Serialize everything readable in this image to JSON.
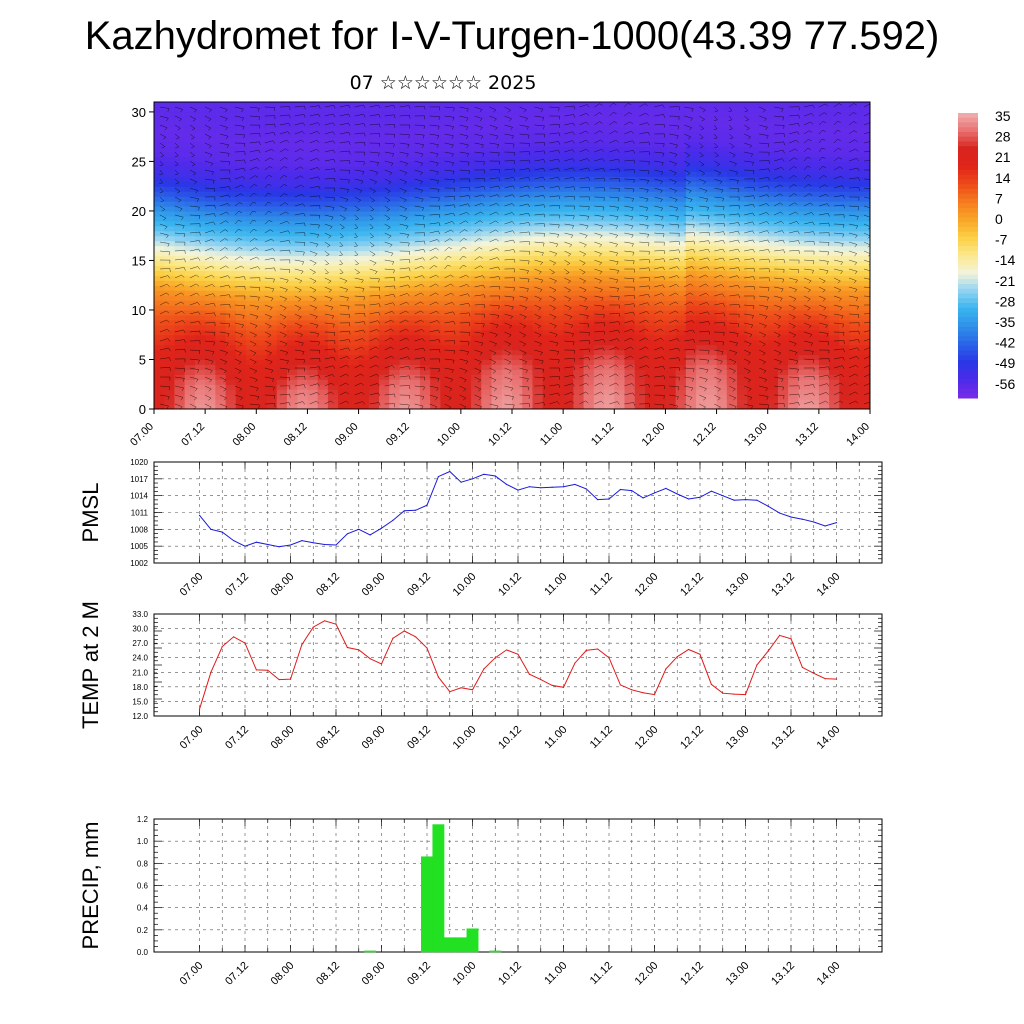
{
  "title": "Kazhydromet for I-V-Turgen-1000(43.39 77.592)",
  "subtitle": "07 ☆☆☆☆☆☆ 2025",
  "x_ticks": [
    "07.00",
    "07.12",
    "08.00",
    "08.12",
    "09.00",
    "09.12",
    "10.00",
    "10.12",
    "11.00",
    "11.12",
    "12.00",
    "12.12",
    "13.00",
    "13.12",
    "14.00"
  ],
  "colors": {
    "pmsl_line": "#1a1adc",
    "temp_line": "#e01a1a",
    "precip_bar": "#22e022",
    "colorbar": [
      "#7a2bea",
      "#4d2bea",
      "#2a37e6",
      "#2b63e8",
      "#2f8fe8",
      "#39b4ef",
      "#8fd2f2",
      "#f3f4dc",
      "#fbe98c",
      "#fbd045",
      "#f9a628",
      "#f57b1f",
      "#ee4a1a",
      "#e0241a",
      "#d8241e",
      "#e87171",
      "#f2b0b0"
    ]
  },
  "chart_data": [
    {
      "type": "heatmap",
      "title": "",
      "x_ticks": [
        "07.00",
        "07.12",
        "08.00",
        "08.12",
        "09.00",
        "09.12",
        "10.00",
        "10.12",
        "11.00",
        "11.12",
        "12.00",
        "12.12",
        "13.00",
        "13.12",
        "14.00"
      ],
      "y_ticks": [
        "0",
        "5",
        "10",
        "15",
        "20",
        "25",
        "30"
      ],
      "ylim": [
        0,
        31
      ],
      "colorbar_labels": [
        "35",
        "28",
        "21",
        "14",
        "7",
        "0",
        "-7",
        "-14",
        "-21",
        "-28",
        "-35",
        "-42",
        "-49",
        "-56"
      ],
      "value_range": [
        -60,
        38
      ],
      "overlay": "wind barbs",
      "profile": {
        "levels": [
          0,
          3,
          6,
          9,
          12,
          14,
          16,
          18,
          20,
          22,
          24,
          26,
          28,
          31
        ],
        "values": [
          30,
          28,
          22,
          14,
          4,
          -6,
          -16,
          -26,
          -34,
          -44,
          -52,
          -56,
          -57,
          -56
        ]
      }
    },
    {
      "type": "line",
      "ylabel": "PMSL",
      "ylim": [
        1002,
        1020
      ],
      "y_ticks": [
        "1020",
        "1017",
        "1014",
        "1011",
        "1008",
        "1005",
        "1002"
      ],
      "x_ticks": [
        "07.00",
        "07.12",
        "08.00",
        "08.12",
        "09.00",
        "09.12",
        "10.00",
        "10.12",
        "11.00",
        "11.12",
        "12.00",
        "12.12",
        "13.00",
        "13.12",
        "14.00"
      ],
      "x": [
        0,
        3,
        6,
        9,
        12,
        15,
        18,
        21,
        24,
        27,
        30,
        33,
        36,
        39,
        42,
        45,
        48,
        51,
        54,
        57,
        60,
        63,
        66,
        69,
        72,
        75,
        78,
        81,
        84,
        87,
        90,
        93,
        96,
        99,
        102,
        105,
        108,
        111,
        114,
        117,
        120,
        123,
        126,
        129,
        132,
        135,
        138,
        141,
        144,
        147,
        150,
        153,
        156,
        159,
        162,
        165,
        168
      ],
      "series": [
        {
          "values": [
            1010.5,
            1008.0,
            1007.5,
            1006.0,
            1005.0,
            1005.7,
            1005.3,
            1004.9,
            1005.2,
            1006.0,
            1005.6,
            1005.3,
            1005.2,
            1007.2,
            1008.0,
            1007.0,
            1008.2,
            1009.6,
            1011.3,
            1011.4,
            1012.3,
            1017.4,
            1018.3,
            1016.4,
            1017.0,
            1017.8,
            1017.5,
            1016.0,
            1015.0,
            1015.6,
            1015.4,
            1015.5,
            1015.6,
            1016.0,
            1015.2,
            1013.3,
            1013.4,
            1015.1,
            1014.9,
            1013.6,
            1014.5,
            1015.3,
            1014.3,
            1013.4,
            1013.7,
            1014.8,
            1014.0,
            1013.2,
            1013.3,
            1013.2,
            1012.1,
            1010.9,
            1010.2,
            1009.8,
            1009.3,
            1008.6,
            1009.2
          ]
        }
      ]
    },
    {
      "type": "line",
      "ylabel": "TEMP at 2 M",
      "ylim": [
        12,
        33
      ],
      "y_ticks": [
        "33.0",
        "30.0",
        "27.0",
        "24.0",
        "21.0",
        "18.0",
        "15.0",
        "12.0"
      ],
      "x_ticks": [
        "07.00",
        "07.12",
        "08.00",
        "08.12",
        "09.00",
        "09.12",
        "10.00",
        "10.12",
        "11.00",
        "11.12",
        "12.00",
        "12.12",
        "13.00",
        "13.12",
        "14.00"
      ],
      "x": [
        0,
        3,
        6,
        9,
        12,
        15,
        18,
        21,
        24,
        27,
        30,
        33,
        36,
        39,
        42,
        45,
        48,
        51,
        54,
        57,
        60,
        63,
        66,
        69,
        72,
        75,
        78,
        81,
        84,
        87,
        90,
        93,
        96,
        99,
        102,
        105,
        108,
        111,
        114,
        117,
        120,
        123,
        126,
        129,
        132,
        135,
        138,
        141,
        144,
        147,
        150,
        153,
        156,
        159,
        162,
        165,
        168
      ],
      "series": [
        {
          "values": [
            13.4,
            21.0,
            26.3,
            28.3,
            27.0,
            21.5,
            21.4,
            19.5,
            19.6,
            26.7,
            30.3,
            31.6,
            30.9,
            26.1,
            25.6,
            23.8,
            22.7,
            28.0,
            29.5,
            28.3,
            26.0,
            20.0,
            17.0,
            17.8,
            17.4,
            21.7,
            24.0,
            25.6,
            24.7,
            20.6,
            19.5,
            18.3,
            17.9,
            22.9,
            25.5,
            25.8,
            24.0,
            18.4,
            17.4,
            16.8,
            16.4,
            21.7,
            24.2,
            25.7,
            24.7,
            18.5,
            16.7,
            16.5,
            16.4,
            22.5,
            25.4,
            28.6,
            27.9,
            22.0,
            20.8,
            19.7,
            19.6
          ]
        }
      ]
    },
    {
      "type": "bar",
      "ylabel": "PRECIP, mm",
      "ylim": [
        0,
        1.2
      ],
      "y_ticks": [
        "1.2",
        "1.0",
        "0.8",
        "0.6",
        "0.4",
        "0.2",
        "0.0"
      ],
      "x_ticks": [
        "07.00",
        "07.12",
        "08.00",
        "08.12",
        "09.00",
        "09.12",
        "10.00",
        "10.12",
        "11.00",
        "11.12",
        "12.00",
        "12.12",
        "13.00",
        "13.12",
        "14.00"
      ],
      "x": [
        45,
        60,
        63,
        66,
        69,
        72,
        78
      ],
      "values": [
        0.01,
        0.86,
        1.15,
        0.13,
        0.13,
        0.21,
        0.01
      ]
    }
  ]
}
